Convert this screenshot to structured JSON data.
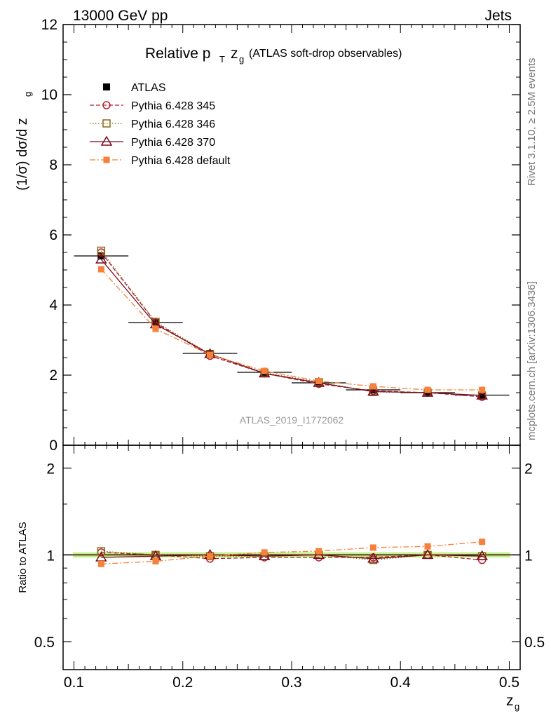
{
  "header": {
    "left": "13000 GeV pp",
    "right": "Jets",
    "title_main": "Relative p",
    "title_sub_T": "T",
    "title_z": "z",
    "title_sub_g": "g",
    "title_paren": "(ATLAS soft-drop observables)"
  },
  "side": {
    "rivet": "Rivet 3.1.10, ≥ 2.5M events",
    "mcplots": "mcplots.cern.ch [arXiv:1306.3436]"
  },
  "watermark": "ATLAS_2019_I1772062",
  "chart_data": [
    {
      "type": "line",
      "panel": "main",
      "ylabel": "(1/σ) dσ/d z",
      "ylabel_sub": "g",
      "xlim": [
        0.09,
        0.51
      ],
      "ylim": [
        0,
        12
      ],
      "yticks": [
        "0",
        "2",
        "4",
        "6",
        "8",
        "10",
        "12"
      ],
      "x": [
        0.125,
        0.175,
        0.225,
        0.275,
        0.325,
        0.375,
        0.425,
        0.475
      ],
      "legend_position": "top-left",
      "series": [
        {
          "name": "ATLAS",
          "color": "#000000",
          "marker": "square-filled",
          "line": "none",
          "values": [
            5.4,
            3.5,
            2.62,
            2.08,
            1.78,
            1.58,
            1.5,
            1.43
          ]
        },
        {
          "name": "Pythia 6.428 345",
          "color": "#b22234",
          "marker": "circle-open",
          "line": "dashed",
          "values": [
            5.5,
            3.5,
            2.55,
            2.05,
            1.75,
            1.55,
            1.5,
            1.38
          ]
        },
        {
          "name": "Pythia 6.428 346",
          "color": "#8b6914",
          "marker": "square-open",
          "line": "dotted",
          "values": [
            5.55,
            3.52,
            2.6,
            2.07,
            1.8,
            1.52,
            1.5,
            1.42
          ]
        },
        {
          "name": "Pythia 6.428 370",
          "color": "#7a0b1e",
          "marker": "triangle-open",
          "line": "solid",
          "values": [
            5.3,
            3.45,
            2.6,
            2.05,
            1.78,
            1.53,
            1.5,
            1.42
          ]
        },
        {
          "name": "Pythia 6.428 default",
          "color": "#f5813a",
          "marker": "square-filled-small",
          "line": "dashdot",
          "values": [
            5.02,
            3.32,
            2.58,
            2.12,
            1.83,
            1.68,
            1.58,
            1.58
          ]
        }
      ]
    },
    {
      "type": "line",
      "panel": "ratio",
      "ylabel": "Ratio to ATLAS",
      "xlabel": "z",
      "xlabel_sub": "g",
      "xlim": [
        0.09,
        0.51
      ],
      "ylim": [
        0.4,
        2.4
      ],
      "yscale": "log",
      "yticks": [
        0.5,
        1,
        2
      ],
      "ytick_labels": [
        "0.5",
        "1",
        "2"
      ],
      "xticks": [
        0.1,
        0.2,
        0.3,
        0.4,
        0.5
      ],
      "xtick_labels": [
        "0.1",
        "0.2",
        "0.3",
        "0.4",
        "0.5"
      ],
      "x": [
        0.125,
        0.175,
        0.225,
        0.275,
        0.325,
        0.375,
        0.425,
        0.475
      ],
      "band": {
        "inner": 0.01,
        "outer": 0.02,
        "inner_color": "#f0f08c",
        "outer_color": "#b4ef85"
      },
      "series": [
        {
          "name": "Pythia 6.428 345",
          "color": "#b22234",
          "marker": "circle-open",
          "line": "dashed",
          "values": [
            1.02,
            1.0,
            0.97,
            0.98,
            0.98,
            0.98,
            1.0,
            0.96
          ]
        },
        {
          "name": "Pythia 6.428 346",
          "color": "#8b6914",
          "marker": "square-open",
          "line": "dotted",
          "values": [
            1.03,
            1.0,
            0.99,
            0.99,
            1.0,
            0.96,
            1.0,
            0.99
          ]
        },
        {
          "name": "Pythia 6.428 370",
          "color": "#7a0b1e",
          "marker": "triangle-open",
          "line": "solid",
          "values": [
            0.98,
            0.99,
            1.0,
            0.99,
            1.0,
            0.97,
            1.0,
            0.99
          ]
        },
        {
          "name": "Pythia 6.428 default",
          "color": "#f5813a",
          "marker": "square-filled-small",
          "line": "dashdot",
          "values": [
            0.93,
            0.95,
            0.99,
            1.02,
            1.03,
            1.06,
            1.07,
            1.11
          ]
        }
      ]
    }
  ]
}
